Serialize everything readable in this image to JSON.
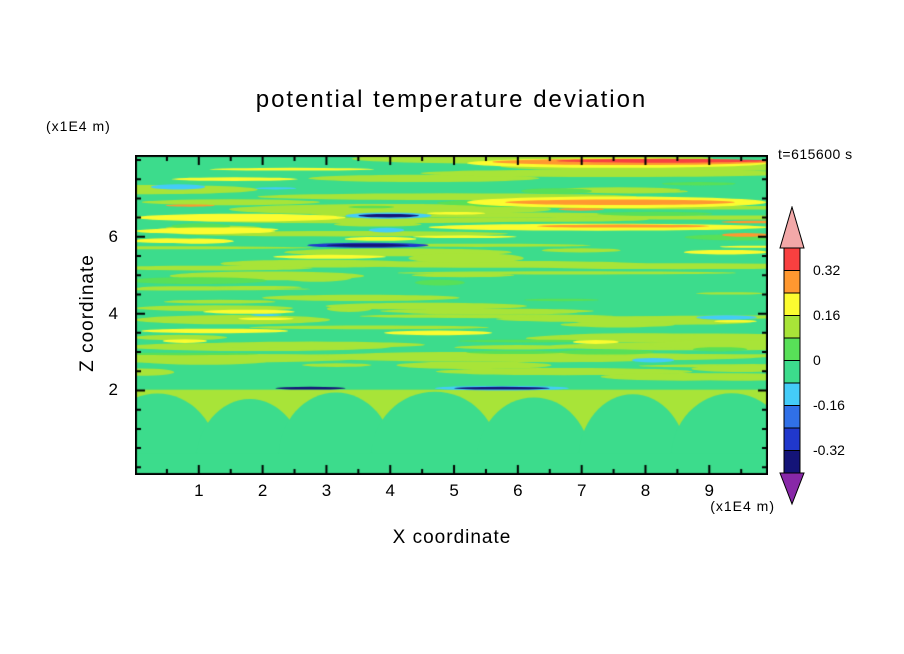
{
  "chart_data": {
    "type": "heatmap",
    "title": "potential temperature deviation",
    "timestamp": "t=615600 s",
    "xlabel": "X coordinate",
    "ylabel": "Z coordinate",
    "x_unit_label": "(x1E4 m)",
    "z_unit_label": "(x1E4 m)",
    "x_range": [
      0,
      9.92
    ],
    "z_range": [
      -0.2,
      8.13
    ],
    "x_ticks": [
      1,
      2,
      3,
      4,
      5,
      6,
      7,
      8,
      9
    ],
    "z_ticks": [
      2,
      4,
      6
    ],
    "minor_tick_step": 0.5,
    "grid": false,
    "colorbar": {
      "position": "right",
      "levels": [
        0.4,
        0.32,
        0.24,
        0.16,
        0.08,
        0,
        -0.08,
        -0.16,
        -0.24,
        -0.32,
        -0.4
      ],
      "arrow_top_color": "#f2a8a8",
      "arrow_bottom_color": "#8828a8",
      "segments": [
        "#f84040",
        "#ff9830",
        "#fcfc30",
        "#a8e438",
        "#58e058",
        "#3cdc8c",
        "#44ccf8",
        "#3070e8",
        "#2038cc",
        "#141478"
      ],
      "labels": [
        {
          "text": "0.32",
          "boundary": 1
        },
        {
          "text": "0.16",
          "boundary": 3
        },
        {
          "text": "0",
          "boundary": 5
        },
        {
          "text": "-0.16",
          "boundary": 7
        },
        {
          "text": "-0.32",
          "boundary": 9
        }
      ]
    },
    "field": {
      "background": "#3cdc8c",
      "seed": 20240615,
      "streak_layers": [
        {
          "color": "#a8e438",
          "count": 32,
          "z_range": [
            2.2,
            3.9
          ],
          "width": [
            0.8,
            5.5
          ],
          "height": [
            0.07,
            0.25
          ]
        },
        {
          "color": "#a8e438",
          "count": 34,
          "z_range": [
            4.9,
            8.05
          ],
          "width": [
            0.8,
            6.0
          ],
          "height": [
            0.07,
            0.28
          ]
        },
        {
          "color": "#a8e438",
          "count": 14,
          "z_range": [
            3.9,
            4.9
          ],
          "width": [
            0.6,
            4.0
          ],
          "height": [
            0.06,
            0.18
          ]
        },
        {
          "color": "#58e058",
          "count": 16,
          "z_range": [
            2.3,
            7.9
          ],
          "width": [
            0.6,
            2.5
          ],
          "height": [
            0.06,
            0.18
          ]
        },
        {
          "color": "#fcfc30",
          "count": 10,
          "z_range": [
            5.0,
            8.0
          ],
          "width": [
            0.8,
            2.6
          ],
          "height": [
            0.05,
            0.14
          ]
        },
        {
          "color": "#fcfc30",
          "count": 5,
          "z_range": [
            3.2,
            4.2
          ],
          "width": [
            0.6,
            1.8
          ],
          "height": [
            0.05,
            0.12
          ]
        },
        {
          "color": "#ff9830",
          "count": 3,
          "z_range": [
            6.0,
            7.9
          ],
          "width": [
            0.6,
            1.8
          ],
          "height": [
            0.05,
            0.1
          ]
        },
        {
          "color": "#44ccf8",
          "count": 5,
          "z_range": [
            2.6,
            7.4
          ],
          "width": [
            0.4,
            1.0
          ],
          "height": [
            0.05,
            0.12
          ]
        }
      ],
      "features": [
        {
          "color": "#fcfc30",
          "x": [
            5.2,
            9.92
          ],
          "z": 7.92,
          "h": 0.25
        },
        {
          "color": "#ff9830",
          "x": [
            5.6,
            9.92
          ],
          "z": 7.95,
          "h": 0.16
        },
        {
          "color": "#f84040",
          "x": [
            6.6,
            9.92
          ],
          "z": 7.98,
          "h": 0.1
        },
        {
          "color": "#fcfc30",
          "x": [
            5.2,
            9.9
          ],
          "z": 6.9,
          "h": 0.3
        },
        {
          "color": "#ff9830",
          "x": [
            5.8,
            9.4
          ],
          "z": 6.9,
          "h": 0.14
        },
        {
          "color": "#fcfc30",
          "x": [
            0.0,
            3.3
          ],
          "z": 6.5,
          "h": 0.2
        },
        {
          "color": "#fcfc30",
          "x": [
            0.0,
            2.2
          ],
          "z": 6.15,
          "h": 0.15
        },
        {
          "color": "#fcfc30",
          "x": [
            4.6,
            9.92
          ],
          "z": 6.25,
          "h": 0.18
        },
        {
          "color": "#ff9830",
          "x": [
            6.3,
            9.0
          ],
          "z": 6.28,
          "h": 0.08
        },
        {
          "color": "#ff9830",
          "x": [
            9.2,
            9.92
          ],
          "z": 6.05,
          "h": 0.1
        },
        {
          "color": "#44ccf8",
          "x": [
            0.25,
            1.1
          ],
          "z": 7.3,
          "h": 0.14
        },
        {
          "color": "#44ccf8",
          "x": [
            3.3,
            4.65
          ],
          "z": 6.55,
          "h": 0.16
        },
        {
          "color": "#141478",
          "x": [
            3.5,
            4.45
          ],
          "z": 6.55,
          "h": 0.09
        },
        {
          "color": "#2038cc",
          "x": [
            2.7,
            4.6
          ],
          "z": 5.78,
          "h": 0.13
        },
        {
          "color": "#141478",
          "x": [
            3.0,
            4.3
          ],
          "z": 5.78,
          "h": 0.08
        },
        {
          "color": "#fcfc30",
          "x": [
            0.0,
            1.0
          ],
          "z": 5.9,
          "h": 0.12
        },
        {
          "color": "#fcfc30",
          "x": [
            8.6,
            9.92
          ],
          "z": 5.6,
          "h": 0.12
        },
        {
          "color": "#fcfc30",
          "x": [
            0.1,
            2.4
          ],
          "z": 3.55,
          "h": 0.12
        },
        {
          "color": "#fcfc30",
          "x": [
            3.9,
            5.6
          ],
          "z": 3.5,
          "h": 0.12
        },
        {
          "color": "#44ccf8",
          "x": [
            4.7,
            6.8
          ],
          "z": 2.06,
          "h": 0.12
        },
        {
          "color": "#141478",
          "x": [
            5.0,
            6.5
          ],
          "z": 2.06,
          "h": 0.07
        },
        {
          "color": "#141478",
          "x": [
            2.2,
            3.3
          ],
          "z": 2.06,
          "h": 0.07
        }
      ],
      "bottom_band": {
        "top": 2.02,
        "color": "#a8e438",
        "mound_color": "#3cdc8c",
        "mound_rz": 1.7,
        "base_top": 0.35,
        "mounds": [
          {
            "cx": 0.35,
            "rx": 0.95,
            "top": 1.92
          },
          {
            "cx": 1.8,
            "rx": 0.85,
            "top": 1.78
          },
          {
            "cx": 3.15,
            "rx": 0.9,
            "top": 1.95
          },
          {
            "cx": 4.7,
            "rx": 1.0,
            "top": 1.97
          },
          {
            "cx": 6.25,
            "rx": 0.9,
            "top": 1.82
          },
          {
            "cx": 7.8,
            "rx": 0.85,
            "top": 1.9
          },
          {
            "cx": 9.35,
            "rx": 0.95,
            "top": 1.93
          }
        ]
      }
    }
  }
}
